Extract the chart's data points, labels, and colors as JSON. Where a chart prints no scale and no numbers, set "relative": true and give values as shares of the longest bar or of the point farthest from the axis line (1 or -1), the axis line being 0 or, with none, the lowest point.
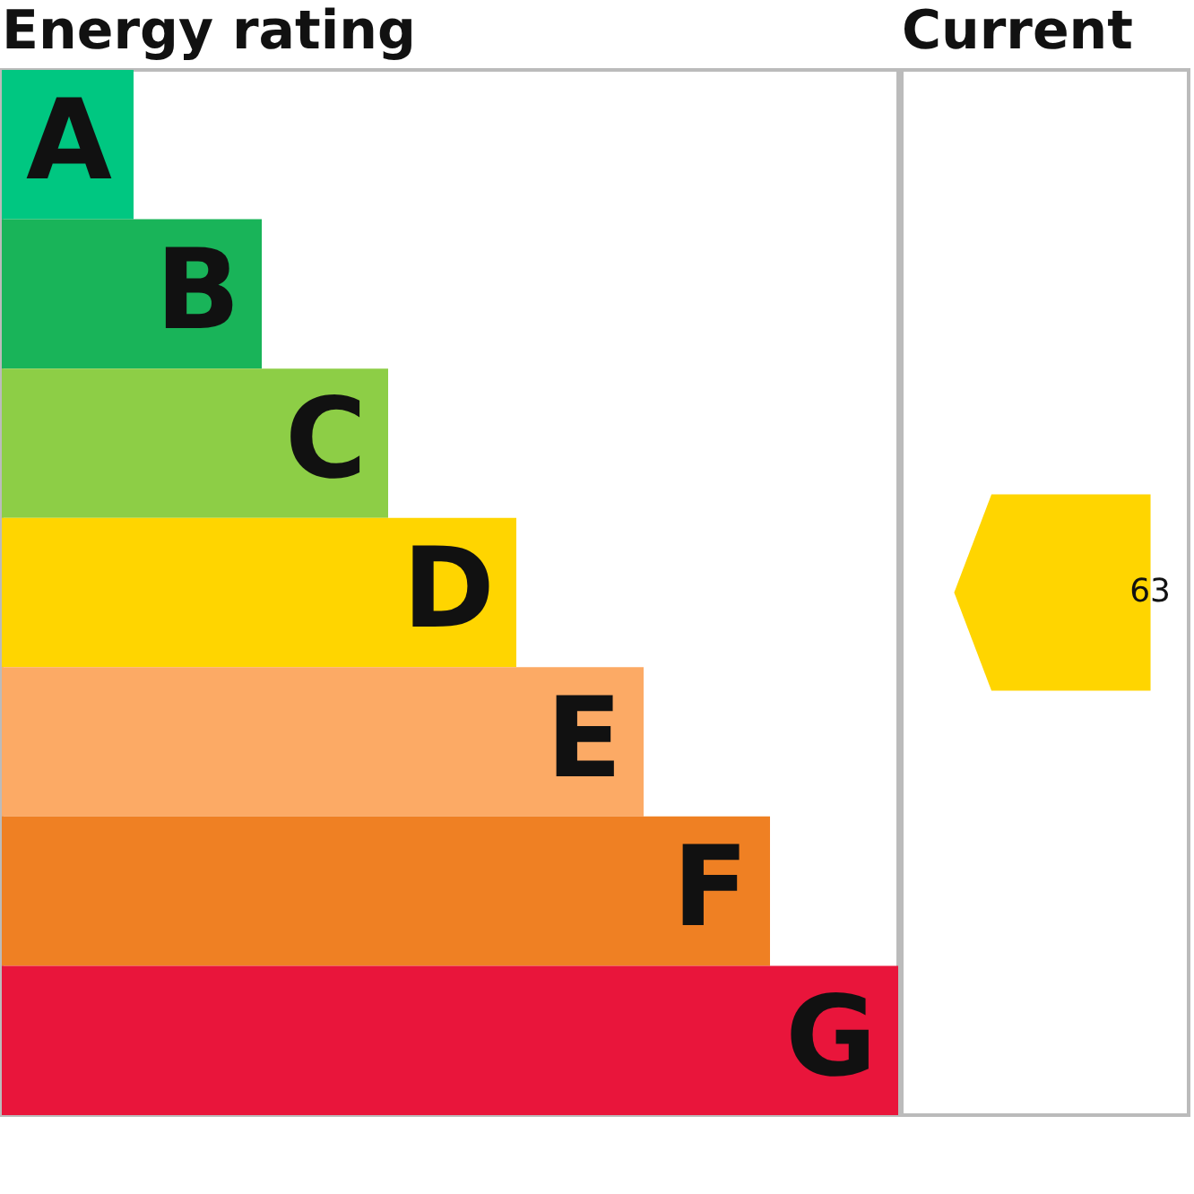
{
  "chart_data": {
    "type": "bar",
    "orientation": "horizontal",
    "relative": true,
    "title": "Energy rating",
    "categories": [
      "A",
      "B",
      "C",
      "D",
      "E",
      "F",
      "G"
    ],
    "values": [
      0.147,
      0.29,
      0.431,
      0.574,
      0.716,
      0.857,
      1
    ],
    "colors": [
      "#00c781",
      "#19b459",
      "#8dce46",
      "#ffd500",
      "#fcaa65",
      "#ef8023",
      "#e9153b"
    ],
    "tick_labels": false,
    "annotations": [
      "Current",
      "63"
    ]
  }
}
